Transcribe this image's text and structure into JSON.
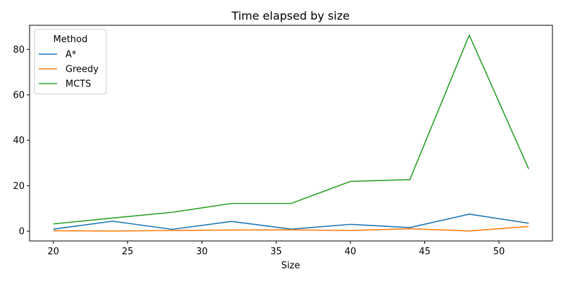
{
  "chart_data": {
    "type": "line",
    "title": "Time elapsed by size",
    "xlabel": "Size",
    "ylabel": "",
    "x": [
      20,
      24,
      28,
      32,
      36,
      40,
      44,
      48,
      52
    ],
    "xlim": [
      18.4,
      53.6
    ],
    "ylim": [
      -4.3,
      90.6
    ],
    "xticks": [
      20,
      25,
      30,
      35,
      40,
      45,
      50
    ],
    "yticks": [
      0,
      20,
      40,
      60,
      80
    ],
    "grid": false,
    "legend": {
      "title": "Method",
      "placement": "top-left"
    },
    "series": [
      {
        "name": "A*",
        "color": "#1f77b4",
        "values": [
          0.9,
          4.4,
          0.8,
          4.3,
          0.9,
          3.0,
          1.6,
          7.5,
          3.5
        ]
      },
      {
        "name": "Greedy",
        "color": "#ff7f0e",
        "values": [
          0.2,
          0.1,
          0.3,
          0.5,
          0.6,
          0.3,
          1.1,
          0.1,
          2.1
        ]
      },
      {
        "name": "MCTS",
        "color": "#2ca02c",
        "values": [
          3.2,
          5.8,
          8.3,
          12.2,
          12.2,
          21.9,
          22.7,
          86.3,
          27.4
        ]
      }
    ]
  }
}
